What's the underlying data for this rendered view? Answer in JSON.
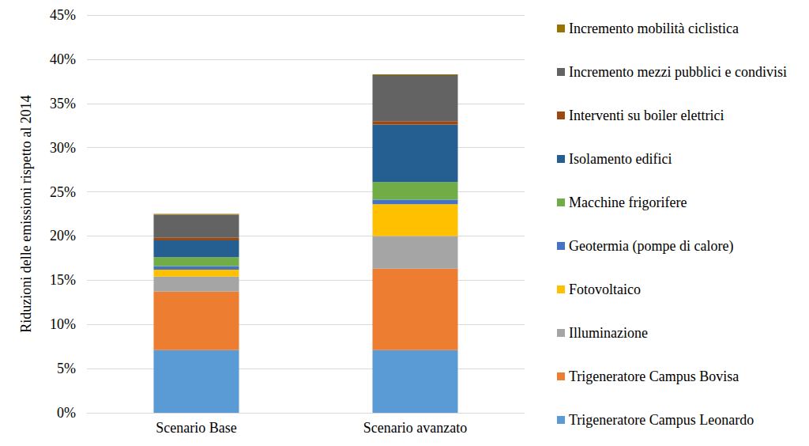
{
  "chart_data": {
    "type": "bar",
    "stacked": true,
    "y_label": "Riduzioni delle emissioni rispetto al 2014",
    "categories": [
      "Scenario Base",
      "Scenario avanzato"
    ],
    "series": [
      {
        "name": "Trigeneratore Campus Leonardo",
        "color": "#5B9BD5",
        "values": [
          7.1,
          7.1
        ]
      },
      {
        "name": "Trigeneratore Campus Bovisa",
        "color": "#ED7D31",
        "values": [
          6.6,
          9.2
        ]
      },
      {
        "name": "Illuminazione",
        "color": "#A5A5A5",
        "values": [
          1.7,
          3.7
        ]
      },
      {
        "name": "Fotovoltaico",
        "color": "#FFC000",
        "values": [
          0.8,
          3.6
        ]
      },
      {
        "name": "Geotermia (pompe di calore)",
        "color": "#4472C4",
        "values": [
          0.4,
          0.5
        ]
      },
      {
        "name": "Macchine frigorifere",
        "color": "#70AD47",
        "values": [
          1.0,
          2.0
        ]
      },
      {
        "name": "Isolamento edifici",
        "color": "#255E91",
        "values": [
          1.9,
          6.5
        ]
      },
      {
        "name": "Interventi su boiler elettrici",
        "color": "#9E480E",
        "values": [
          0.3,
          0.4
        ]
      },
      {
        "name": "Incremento mezzi pubblici e condivisi",
        "color": "#636363",
        "values": [
          2.6,
          5.2
        ]
      },
      {
        "name": "Incremento mobilità ciclistica",
        "color": "#997300",
        "values": [
          0.1,
          0.1
        ]
      }
    ],
    "ylim": [
      0,
      45
    ],
    "yticks": [
      {
        "value": 0,
        "label": "0%"
      },
      {
        "value": 5,
        "label": "5%"
      },
      {
        "value": 10,
        "label": "10%"
      },
      {
        "value": 15,
        "label": "15%"
      },
      {
        "value": 20,
        "label": "20%"
      },
      {
        "value": 25,
        "label": "25%"
      },
      {
        "value": 30,
        "label": "30%"
      },
      {
        "value": 35,
        "label": "35%"
      },
      {
        "value": 40,
        "label": "40%"
      },
      {
        "value": 45,
        "label": "45%"
      }
    ],
    "grid": true,
    "legend": "right"
  }
}
